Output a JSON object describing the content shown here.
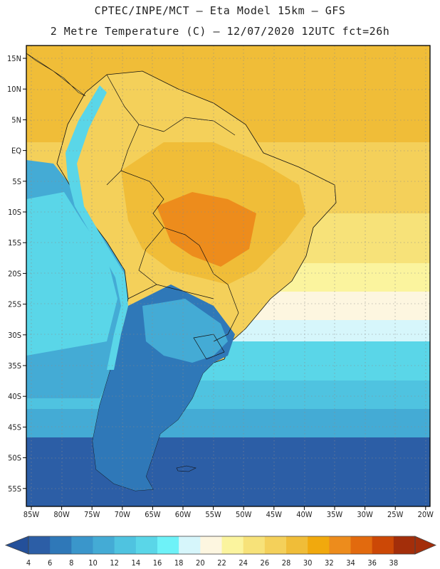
{
  "header": {
    "line1": "CPTEC/INPE/MCT –  Eta Model 15km – GFS",
    "line2": "2 Metre Temperature (C) – 12/07/2020 12UTC fct=26h"
  },
  "axes": {
    "lat_labels": [
      "15N",
      "10N",
      "5N",
      "EQ",
      "5S",
      "10S",
      "15S",
      "20S",
      "25S",
      "30S",
      "35S",
      "40S",
      "45S",
      "50S",
      "55S"
    ],
    "lon_labels": [
      "85W",
      "80W",
      "75W",
      "70W",
      "65W",
      "60W",
      "55W",
      "50W",
      "45W",
      "40W",
      "35W",
      "30W",
      "25W",
      "20W"
    ]
  },
  "colorbar": {
    "labels": [
      "4",
      "6",
      "8",
      "10",
      "12",
      "14",
      "16",
      "18",
      "20",
      "22",
      "24",
      "26",
      "28",
      "30",
      "32",
      "34",
      "36",
      "38"
    ],
    "colors": [
      "#2c5ea6",
      "#2f78b8",
      "#3a96cb",
      "#44abd5",
      "#4fc3e0",
      "#5ad6e8",
      "#6ef2f8",
      "#d6f6fb",
      "#fdf6e0",
      "#fbf49e",
      "#f7e279",
      "#f4d05a",
      "#f0bd38",
      "#f1a90d",
      "#ed8c1c",
      "#e26a0e",
      "#cc4806",
      "#a32e0a"
    ],
    "low_arrow_color": "#24509a",
    "high_arrow_color": "#a32e0a"
  },
  "map_colors": {
    "ocean_cold": "#2c5ea6",
    "ocean_mid": "#4fc3e0",
    "ocean_warm_light": "#fbf49e",
    "ocean_tropical": "#f0bd38",
    "land_hot": "#ed8c1c",
    "land_warm": "#f4d05a",
    "andes": "#5ad6e8"
  }
}
